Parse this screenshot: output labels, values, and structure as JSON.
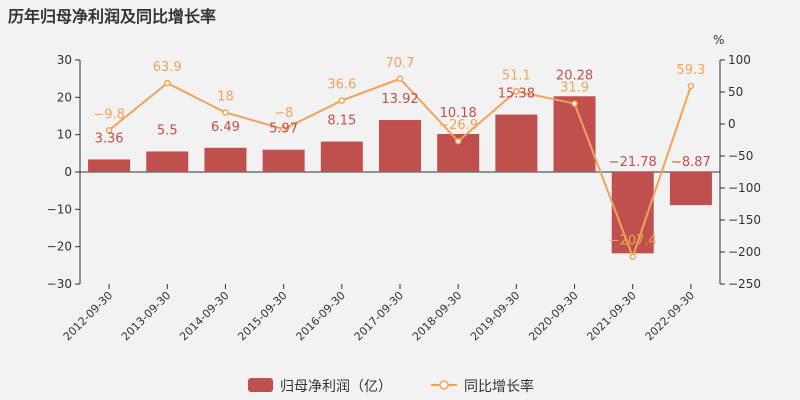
{
  "chart_data": {
    "type": "bar",
    "title": "历年归母净利润及同比增长率",
    "categories": [
      "2012-09-30",
      "2013-09-30",
      "2014-09-30",
      "2015-09-30",
      "2016-09-30",
      "2017-09-30",
      "2018-09-30",
      "2019-09-30",
      "2020-09-30",
      "2021-09-30",
      "2022-09-30"
    ],
    "series": [
      {
        "name": "归母净利润（亿）",
        "type": "bar",
        "axis": "left",
        "values": [
          3.36,
          5.5,
          6.49,
          5.97,
          8.15,
          13.92,
          10.18,
          15.38,
          20.28,
          -21.78,
          -8.87
        ],
        "labels": [
          "3.36",
          "5.5",
          "6.49",
          "5.97",
          "8.15",
          "13.92",
          "10.18",
          "15.38",
          "20.28",
          "−21.78",
          "−8.87"
        ]
      },
      {
        "name": "同比增长率",
        "type": "line",
        "axis": "right",
        "values": [
          -9.8,
          63.9,
          18,
          -8,
          36.6,
          70.7,
          -26.9,
          51.1,
          31.9,
          -207.4,
          59.3
        ],
        "labels": [
          "−9.8",
          "63.9",
          "18",
          "−8",
          "36.6",
          "70.7",
          "−26.9",
          "51.1",
          "31.9",
          "−207.4",
          "59.3"
        ]
      }
    ],
    "y_left": {
      "ylim": [
        -30,
        30
      ],
      "ticks": [
        30,
        20,
        10,
        0,
        -10,
        -20,
        -30
      ],
      "tick_labels": [
        "30",
        "20",
        "10",
        "0",
        "−10",
        "−20",
        "−30"
      ]
    },
    "y_right": {
      "unit": "%",
      "ylim": [
        -250,
        100
      ],
      "ticks": [
        100,
        50,
        0,
        -50,
        -100,
        -150,
        -200,
        -250
      ],
      "tick_labels": [
        "100",
        "50",
        "0",
        "−50",
        "−100",
        "−150",
        "−200",
        "−250"
      ]
    },
    "grid": false,
    "legend": "bottom-center",
    "colors": {
      "bar": "#c0504d",
      "line": "#f0a35a",
      "axis": "#333333",
      "background": "#f2f2f2"
    }
  }
}
